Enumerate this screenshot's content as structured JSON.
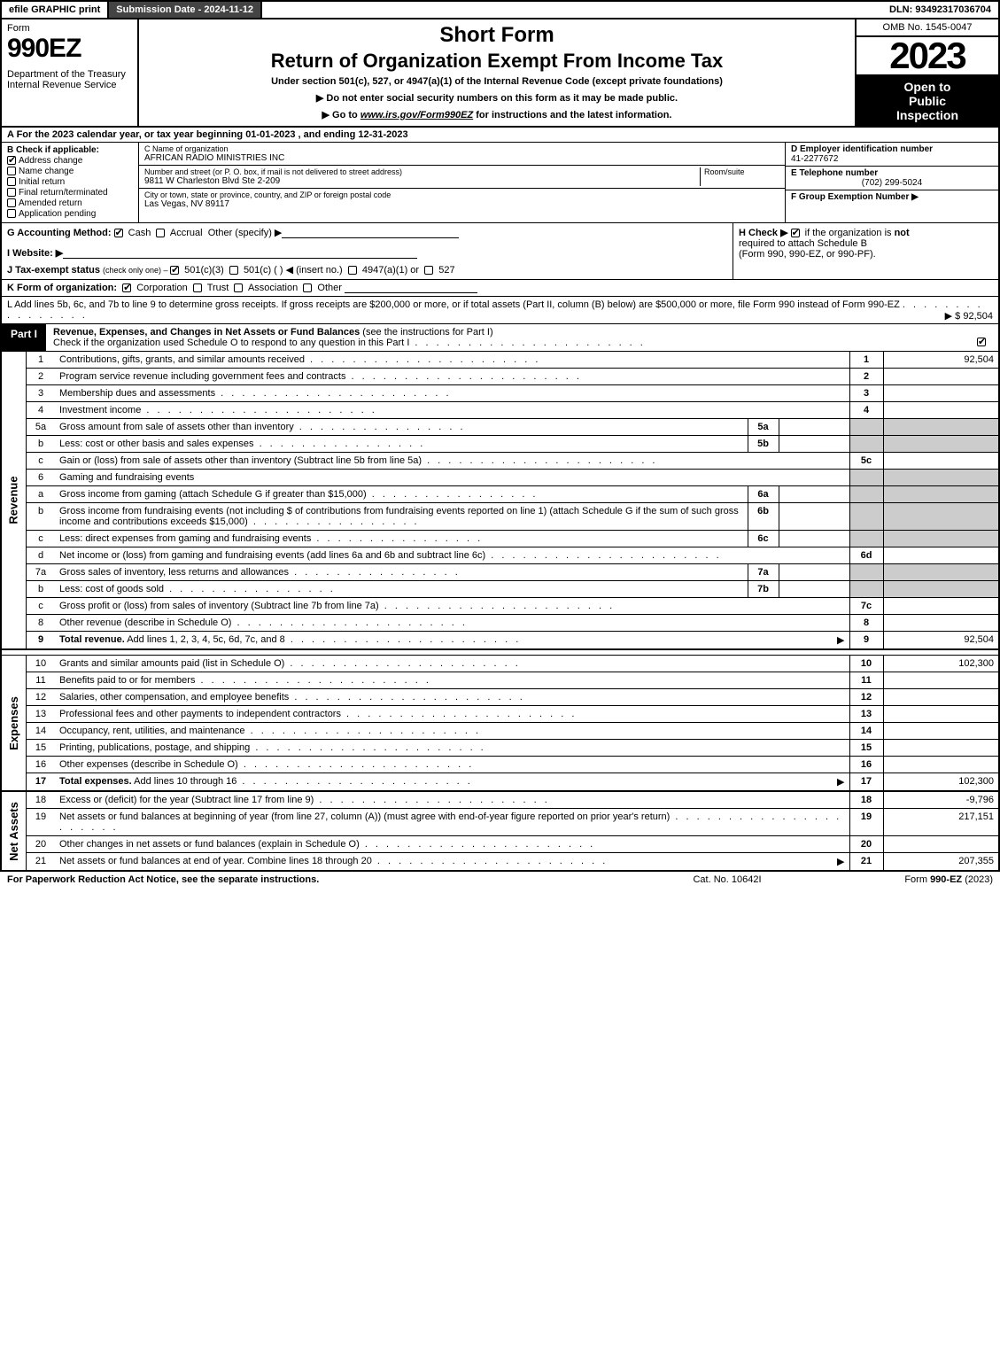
{
  "top": {
    "efile": "efile GRAPHIC print",
    "subdate": "Submission Date - 2024-11-12",
    "dln": "DLN: 93492317036704"
  },
  "header": {
    "form_label": "Form",
    "form_num": "990EZ",
    "dept1": "Department of the Treasury",
    "dept2": "Internal Revenue Service",
    "short_form": "Short Form",
    "return_title": "Return of Organization Exempt From Income Tax",
    "under_sec": "Under section 501(c), 527, or 4947(a)(1) of the Internal Revenue Code (except private foundations)",
    "inst1_prefix": "▶ Do not enter social security numbers on this form as it may be made public.",
    "inst2_prefix": "▶ Go to ",
    "inst2_link": "www.irs.gov/Form990EZ",
    "inst2_suffix": " for instructions and the latest information.",
    "omb": "OMB No. 1545-0047",
    "year": "2023",
    "open1": "Open to",
    "open2": "Public",
    "open3": "Inspection"
  },
  "secA": "A  For the 2023 calendar year, or tax year beginning 01-01-2023 , and ending 12-31-2023",
  "secB": {
    "label": "B  Check if applicable:",
    "addr_change": "Address change",
    "name_change": "Name change",
    "initial": "Initial return",
    "final": "Final return/terminated",
    "amended": "Amended return",
    "pending": "Application pending"
  },
  "secC": {
    "name_label": "C Name of organization",
    "name_val": "AFRICAN RADIO MINISTRIES INC",
    "street_label": "Number and street (or P. O. box, if mail is not delivered to street address)",
    "room_label": "Room/suite",
    "street_val": "9811 W Charleston Blvd Ste 2-209",
    "city_label": "City or town, state or province, country, and ZIP or foreign postal code",
    "city_val": "Las Vegas, NV  89117"
  },
  "secD": {
    "ein_label": "D Employer identification number",
    "ein_val": "41-2277672",
    "tel_label": "E Telephone number",
    "tel_val": "(702) 299-5024",
    "grp_label": "F Group Exemption Number   ▶"
  },
  "secG": {
    "label": "G Accounting Method:",
    "cash": "Cash",
    "accrual": "Accrual",
    "other": "Other (specify) ▶"
  },
  "secH": {
    "label": "H  Check ▶",
    "text1": "if the organization is ",
    "not": "not",
    "text2": "required to attach Schedule B",
    "text3": "(Form 990, 990-EZ, or 990-PF)."
  },
  "secI": "I Website: ▶",
  "secJ": {
    "prefix": "J Tax-exempt status ",
    "small": "(check only one) ‒ ",
    "c3": "501(c)(3)",
    "c_other": "501(c) (    ) ◀ (insert no.)",
    "a1": "4947(a)(1) or",
    "s527": "527"
  },
  "secK": {
    "prefix": "K Form of organization:",
    "corp": "Corporation",
    "trust": "Trust",
    "assoc": "Association",
    "other": "Other"
  },
  "secL": {
    "text": "L Add lines 5b, 6c, and 7b to line 9 to determine gross receipts. If gross receipts are $200,000 or more, or if total assets (Part II, column (B) below) are $500,000 or more, file Form 990 instead of Form 990-EZ",
    "val": "▶ $ 92,504"
  },
  "partI": {
    "tab": "Part I",
    "title": "Revenue, Expenses, and Changes in Net Assets or Fund Balances ",
    "title_suffix": "(see the instructions for Part I)",
    "check_line": "Check if the organization used Schedule O to respond to any question in this Part I"
  },
  "revenue_side": "Revenue",
  "expenses_side": "Expenses",
  "netassets_side": "Net Assets",
  "lines_rev": [
    {
      "n": "1",
      "d": "Contributions, gifts, grants, and similar amounts received",
      "ref": "1",
      "amt": "92,504"
    },
    {
      "n": "2",
      "d": "Program service revenue including government fees and contracts",
      "ref": "2",
      "amt": ""
    },
    {
      "n": "3",
      "d": "Membership dues and assessments",
      "ref": "3",
      "amt": ""
    },
    {
      "n": "4",
      "d": "Investment income",
      "ref": "4",
      "amt": ""
    },
    {
      "n": "5a",
      "d": "Gross amount from sale of assets other than inventory",
      "sub": "5a",
      "subval": ""
    },
    {
      "n": "b",
      "d": "Less: cost or other basis and sales expenses",
      "sub": "5b",
      "subval": ""
    },
    {
      "n": "c",
      "d": "Gain or (loss) from sale of assets other than inventory (Subtract line 5b from line 5a)",
      "ref": "5c",
      "amt": ""
    },
    {
      "n": "6",
      "d": "Gaming and fundraising events"
    },
    {
      "n": "a",
      "d": "Gross income from gaming (attach Schedule G if greater than $15,000)",
      "sub": "6a",
      "subval": ""
    },
    {
      "n": "b",
      "d": "Gross income from fundraising events (not including $                    of contributions from fundraising events reported on line 1) (attach Schedule G if the sum of such gross income and contributions exceeds $15,000)",
      "sub": "6b",
      "subval": ""
    },
    {
      "n": "c",
      "d": "Less: direct expenses from gaming and fundraising events",
      "sub": "6c",
      "subval": ""
    },
    {
      "n": "d",
      "d": "Net income or (loss) from gaming and fundraising events (add lines 6a and 6b and subtract line 6c)",
      "ref": "6d",
      "amt": ""
    },
    {
      "n": "7a",
      "d": "Gross sales of inventory, less returns and allowances",
      "sub": "7a",
      "subval": ""
    },
    {
      "n": "b",
      "d": "Less: cost of goods sold",
      "sub": "7b",
      "subval": ""
    },
    {
      "n": "c",
      "d": "Gross profit or (loss) from sales of inventory (Subtract line 7b from line 7a)",
      "ref": "7c",
      "amt": ""
    },
    {
      "n": "8",
      "d": "Other revenue (describe in Schedule O)",
      "ref": "8",
      "amt": ""
    },
    {
      "n": "9",
      "d": "Total revenue. Add lines 1, 2, 3, 4, 5c, 6d, 7c, and 8",
      "ref": "9",
      "amt": "92,504",
      "bold": true,
      "arrow": true
    }
  ],
  "lines_exp": [
    {
      "n": "10",
      "d": "Grants and similar amounts paid (list in Schedule O)",
      "ref": "10",
      "amt": "102,300"
    },
    {
      "n": "11",
      "d": "Benefits paid to or for members",
      "ref": "11",
      "amt": ""
    },
    {
      "n": "12",
      "d": "Salaries, other compensation, and employee benefits",
      "ref": "12",
      "amt": ""
    },
    {
      "n": "13",
      "d": "Professional fees and other payments to independent contractors",
      "ref": "13",
      "amt": ""
    },
    {
      "n": "14",
      "d": "Occupancy, rent, utilities, and maintenance",
      "ref": "14",
      "amt": ""
    },
    {
      "n": "15",
      "d": "Printing, publications, postage, and shipping",
      "ref": "15",
      "amt": ""
    },
    {
      "n": "16",
      "d": "Other expenses (describe in Schedule O)",
      "ref": "16",
      "amt": ""
    },
    {
      "n": "17",
      "d": "Total expenses. Add lines 10 through 16",
      "ref": "17",
      "amt": "102,300",
      "bold": true,
      "arrow": true
    }
  ],
  "lines_net": [
    {
      "n": "18",
      "d": "Excess or (deficit) for the year (Subtract line 17 from line 9)",
      "ref": "18",
      "amt": "-9,796"
    },
    {
      "n": "19",
      "d": "Net assets or fund balances at beginning of year (from line 27, column (A)) (must agree with end-of-year figure reported on prior year's return)",
      "ref": "19",
      "amt": "217,151"
    },
    {
      "n": "20",
      "d": "Other changes in net assets or fund balances (explain in Schedule O)",
      "ref": "20",
      "amt": ""
    },
    {
      "n": "21",
      "d": "Net assets or fund balances at end of year. Combine lines 18 through 20",
      "ref": "21",
      "amt": "207,355",
      "arrow": true
    }
  ],
  "footer": {
    "left": "For Paperwork Reduction Act Notice, see the separate instructions.",
    "mid": "Cat. No. 10642I",
    "right_prefix": "Form ",
    "right_form": "990-EZ",
    "right_suffix": " (2023)"
  }
}
